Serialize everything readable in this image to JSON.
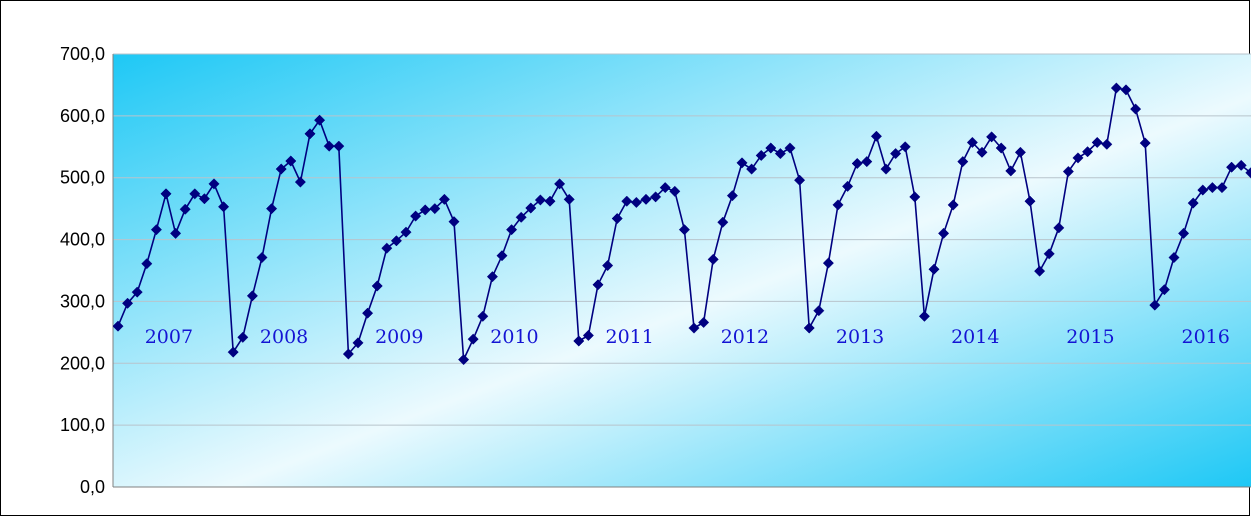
{
  "chart_data": {
    "type": "line",
    "title": "",
    "xlabel": "",
    "ylabel": "",
    "ylim": [
      0,
      700
    ],
    "yticks": [
      "0,0",
      "100,0",
      "200,0",
      "300,0",
      "400,0",
      "500,0",
      "600,0",
      "700,0"
    ],
    "grid": true,
    "legend": "none",
    "year_labels": [
      "2007",
      "2008",
      "2009",
      "2010",
      "2011",
      "2012",
      "2013",
      "2014",
      "2015",
      "2016"
    ],
    "series": [
      {
        "color": "#000080",
        "marker": "diamond",
        "values": [
          260,
          297,
          315,
          361,
          416,
          474,
          410,
          449,
          474,
          466,
          490,
          453,
          218,
          242,
          309,
          371,
          450,
          514,
          527,
          493,
          571,
          593,
          551,
          551,
          215,
          233,
          281,
          325,
          386,
          398,
          412,
          438,
          448,
          450,
          465,
          429,
          206,
          239,
          276,
          340,
          374,
          416,
          436,
          451,
          464,
          462,
          490,
          465,
          236,
          245,
          327,
          358,
          434,
          462,
          460,
          465,
          469,
          484,
          478,
          416,
          257,
          266,
          368,
          428,
          471,
          524,
          514,
          536,
          548,
          539,
          548,
          496,
          257,
          285,
          362,
          456,
          486,
          523,
          526,
          567,
          514,
          539,
          550,
          469,
          276,
          352,
          410,
          456,
          526,
          557,
          541,
          566,
          548,
          511,
          541,
          462,
          349,
          377,
          419,
          510,
          532,
          542,
          557,
          554,
          645,
          642,
          611,
          556,
          294,
          319,
          371,
          410,
          459,
          480,
          484,
          484,
          517,
          520,
          508
        ]
      }
    ]
  },
  "colors": {
    "plot_bg_dark": "#1ec8f5",
    "plot_bg_light": "#ecfafe",
    "line": "#000080",
    "year_text": "#1414d4",
    "grid": "#b8c4cc"
  }
}
